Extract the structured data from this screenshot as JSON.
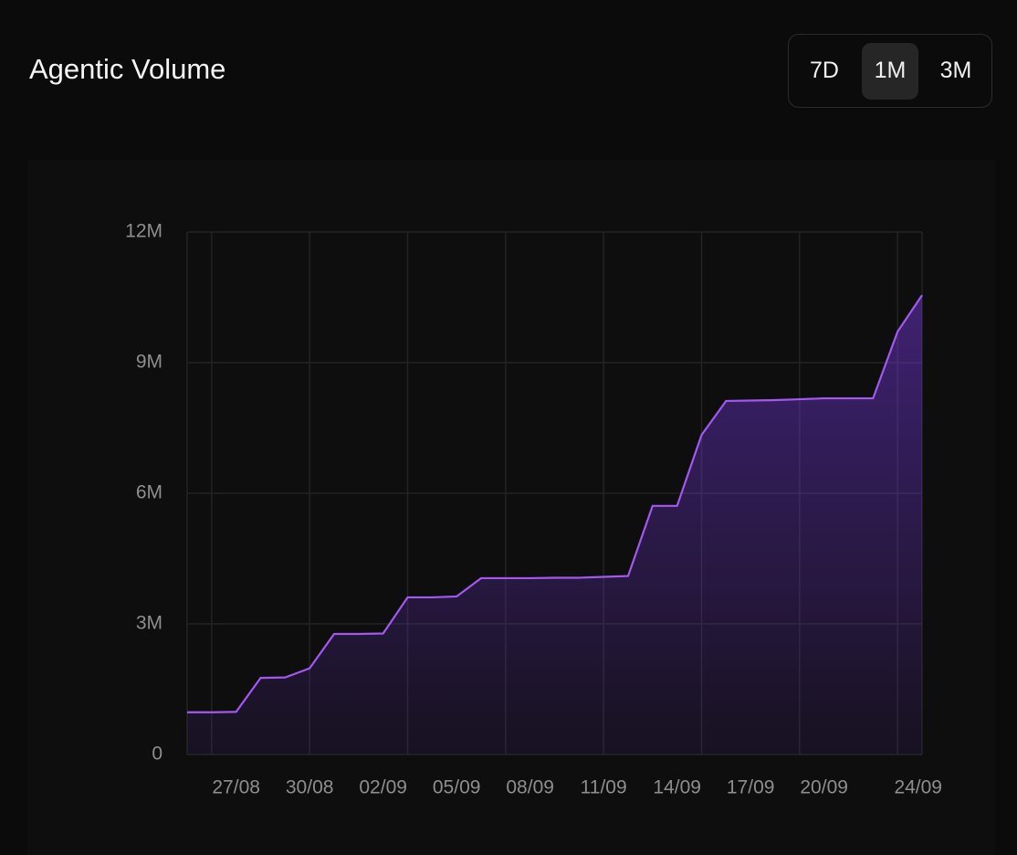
{
  "chart_data": {
    "type": "area",
    "title": "Agentic Volume",
    "range_options": [
      "7D",
      "1M",
      "3M"
    ],
    "selected_range": "1M",
    "categories": [
      null,
      null,
      "27/08",
      null,
      null,
      "30/08",
      null,
      null,
      "02/09",
      null,
      null,
      "05/09",
      null,
      null,
      "08/09",
      null,
      null,
      "11/09",
      null,
      null,
      "14/09",
      null,
      null,
      "17/09",
      null,
      null,
      "20/09",
      null,
      null,
      null,
      "24/09"
    ],
    "series": [
      {
        "name": "Agentic Volume",
        "color": "#a259f0",
        "values": [
          970000,
          970000,
          980000,
          1760000,
          1770000,
          1980000,
          2770000,
          2770000,
          2780000,
          3610000,
          3610000,
          3630000,
          4050000,
          4050000,
          4050000,
          4060000,
          4060000,
          4080000,
          4100000,
          5710000,
          5710000,
          7340000,
          8120000,
          8130000,
          8140000,
          8160000,
          8180000,
          8180000,
          8180000,
          9710000,
          10550000
        ]
      }
    ],
    "ylim": [
      0,
      12000000
    ],
    "yticks": [
      0,
      {
        "value": 3000000,
        "label": "3M"
      },
      {
        "value": 6000000,
        "label": "6M"
      },
      {
        "value": 9000000,
        "label": "9M"
      },
      {
        "value": 12000000,
        "label": "12M"
      }
    ],
    "grid": true
  }
}
